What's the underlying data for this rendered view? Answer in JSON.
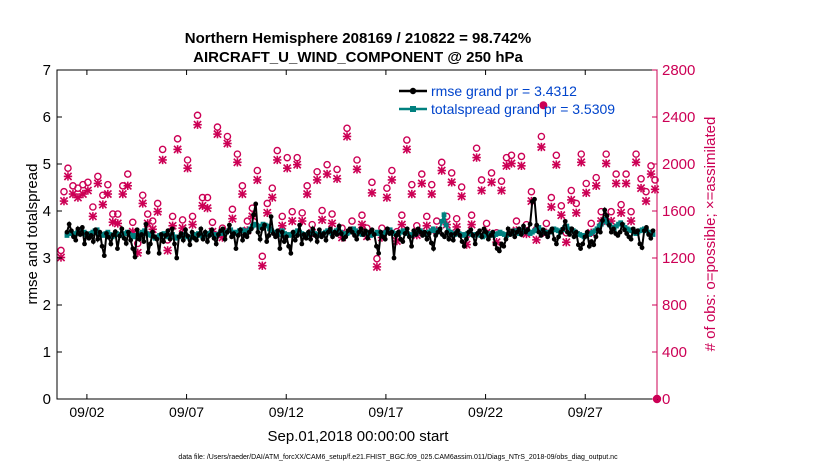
{
  "chart_data": {
    "type": "line",
    "title_line1": "Northern Hemisphere 208169 / 210822 = 98.742%",
    "title_line2": "AIRCRAFT_U_WIND_COMPONENT @ 250 hPa",
    "xlabel": "Sep.01,2018 00:00:00 start",
    "ylabel_left": "rmse and totalspread",
    "ylabel_right": "# of obs: o=possible; ×=assimilated",
    "footer": "data file: /Users/raeder/DAI/ATM_forcXX/CAM6_setup/f.e21.FHIST_BGC.f09_025.CAM6assim.011/Diags_NTrS_2018-09/obs_diag_output.nc",
    "xlim": [
      0.5,
      30.6
    ],
    "ylim_left": [
      0,
      7
    ],
    "ylim_right": [
      0,
      2800
    ],
    "x_ticks": [
      {
        "x": 2,
        "label": "09/02"
      },
      {
        "x": 7,
        "label": "09/07"
      },
      {
        "x": 12,
        "label": "09/12"
      },
      {
        "x": 17,
        "label": "09/17"
      },
      {
        "x": 22,
        "label": "09/22"
      },
      {
        "x": 27,
        "label": "09/27"
      }
    ],
    "y_ticks_left": [
      0,
      1,
      2,
      3,
      4,
      5,
      6,
      7
    ],
    "y_ticks_right": [
      0,
      400,
      800,
      1200,
      1600,
      2000,
      2400,
      2800
    ],
    "legend": [
      {
        "label": "rmse grand pr = 3.4312",
        "color": "#000000"
      },
      {
        "label": "totalspread grand pr = 3.5309",
        "color": "#00807f"
      }
    ],
    "colors": {
      "rmse": "#000000",
      "spread": "#00807f",
      "obs": "#cc0055",
      "legend_text": "#0044cc"
    },
    "series_rmse": [
      3.55,
      3.72,
      3.58,
      3.45,
      3.38,
      3.62,
      3.5,
      3.65,
      3.3,
      3.52,
      3.42,
      3.48,
      3.35,
      3.6,
      3.4,
      3.55,
      3.25,
      3.05,
      3.52,
      3.44,
      3.3,
      3.49,
      3.56,
      3.2,
      3.47,
      3.62,
      3.42,
      3.31,
      3.55,
      3.38,
      3.2,
      3.02,
      3.6,
      3.4,
      3.5,
      3.35,
      3.72,
      3.12,
      3.3,
      3.55,
      3.45,
      3.4,
      3.1,
      3.5,
      3.35,
      3.48,
      3.58,
      3.4,
      3.62,
      3.3,
      3.0,
      3.45,
      3.52,
      3.38,
      3.6,
      3.47,
      3.28,
      3.55,
      3.42,
      3.38,
      3.5,
      3.62,
      3.4,
      3.55,
      3.35,
      3.48,
      3.6,
      3.42,
      3.3,
      3.5,
      3.58,
      3.62,
      3.4,
      3.55,
      3.7,
      3.45,
      3.52,
      3.2,
      3.48,
      3.6,
      3.38,
      3.5,
      3.45,
      3.55,
      3.62,
      3.92,
      4.15,
      3.55,
      3.4,
      3.62,
      3.7,
      3.35,
      3.48,
      3.88,
      3.52,
      3.45,
      3.58,
      3.2,
      3.55,
      3.35,
      3.45,
      3.25,
      3.1,
      3.55,
      3.38,
      3.48,
      3.7,
      3.3,
      3.5,
      3.42,
      3.55,
      3.4,
      3.62,
      3.48,
      3.35,
      3.6,
      3.45,
      3.52,
      3.38,
      3.55,
      3.62,
      3.45,
      3.55,
      3.5,
      3.68,
      3.52,
      3.4,
      3.45,
      3.58,
      3.62,
      3.55,
      3.48,
      3.4,
      3.55,
      3.62,
      3.5,
      3.58,
      3.42,
      3.55,
      3.6,
      3.5,
      3.25,
      3.1,
      3.55,
      3.45,
      3.4,
      3.62,
      3.52,
      3.55,
      3.0,
      3.48,
      3.55,
      3.4,
      3.35,
      3.52,
      3.62,
      3.45,
      3.25,
      3.58,
      3.5,
      3.62,
      3.55,
      3.48,
      3.55,
      3.4,
      3.52,
      3.32,
      3.2,
      3.48,
      3.55,
      3.62,
      3.5,
      3.45,
      3.55,
      3.4,
      3.5,
      3.38,
      3.52,
      3.58,
      3.48,
      3.35,
      3.25,
      3.4,
      3.55,
      3.6,
      3.48,
      3.3,
      3.52,
      3.58,
      3.45,
      3.62,
      3.55,
      3.4,
      3.48,
      3.55,
      3.3,
      3.2,
      3.15,
      3.3,
      3.25,
      3.4,
      3.62,
      3.5,
      3.58,
      3.45,
      3.55,
      3.62,
      3.5,
      3.68,
      3.55,
      3.6,
      3.72,
      4.2,
      4.25,
      3.7,
      3.55,
      3.48,
      3.6,
      3.52,
      3.45,
      3.55,
      3.62,
      3.4,
      3.3,
      3.45,
      3.55,
      3.62,
      3.78,
      3.55,
      3.5,
      3.62,
      3.45,
      3.55,
      3.28,
      3.2,
      3.3,
      3.45,
      3.55,
      3.25,
      3.35,
      3.28,
      3.45,
      3.6,
      3.55,
      3.8,
      4.02,
      3.9,
      3.7,
      3.55,
      3.62,
      3.52,
      3.48,
      3.55,
      3.72,
      3.6,
      3.52,
      3.45,
      3.4,
      3.62,
      3.55,
      3.58,
      3.3,
      3.22,
      3.58,
      3.65,
      3.5,
      3.42,
      3.58
    ],
    "series_spread": [
      3.48,
      3.52,
      3.55,
      3.5,
      3.52,
      3.55,
      3.58,
      3.52,
      3.55,
      3.5,
      3.48,
      3.52,
      3.55,
      3.58,
      3.6,
      3.52,
      3.5,
      3.48,
      3.52,
      3.55,
      3.5,
      3.45,
      3.48,
      3.52,
      3.5,
      3.48,
      3.5,
      3.52,
      3.55,
      3.5,
      3.48,
      3.45,
      3.48,
      3.5,
      3.52,
      3.55,
      3.58,
      3.52,
      3.5,
      3.48,
      3.45,
      3.42,
      3.45,
      3.48,
      3.5,
      3.52,
      3.48,
      3.45,
      3.48,
      3.5,
      3.45,
      3.42,
      3.45,
      3.48,
      3.5,
      3.48,
      3.45,
      3.42,
      3.45,
      3.48,
      3.5,
      3.52,
      3.48,
      3.45,
      3.48,
      3.5,
      3.52,
      3.55,
      3.5,
      3.48,
      3.5,
      3.52,
      3.55,
      3.52,
      3.55,
      3.58,
      3.6,
      3.55,
      3.52,
      3.55,
      3.58,
      3.6,
      3.58,
      3.55,
      3.58,
      3.62,
      3.68,
      3.72,
      3.7,
      3.65,
      3.68,
      3.72,
      3.7,
      3.68,
      3.62,
      3.58,
      3.55,
      3.52,
      3.5,
      3.55,
      3.58,
      3.52,
      3.5,
      3.48,
      3.5,
      3.52,
      3.55,
      3.58,
      3.55,
      3.52,
      3.5,
      3.48,
      3.5,
      3.52,
      3.55,
      3.52,
      3.5,
      3.48,
      3.5,
      3.52,
      3.55,
      3.58,
      3.55,
      3.52,
      3.55,
      3.58,
      3.6,
      3.55,
      3.52,
      3.5,
      3.52,
      3.55,
      3.58,
      3.62,
      3.58,
      3.55,
      3.52,
      3.5,
      3.52,
      3.55,
      3.5,
      3.48,
      3.5,
      3.52,
      3.55,
      3.52,
      3.5,
      3.52,
      3.55,
      3.58,
      3.6,
      3.55,
      3.52,
      3.5,
      3.52,
      3.55,
      3.58,
      3.55,
      3.52,
      3.5,
      3.48,
      3.5,
      3.52,
      3.55,
      3.58,
      3.55,
      3.52,
      3.5,
      3.55,
      3.58,
      3.62,
      3.58,
      3.55,
      3.6,
      3.78,
      3.92,
      3.7,
      3.58,
      3.55,
      3.52,
      3.5,
      3.55,
      3.52,
      3.5,
      3.48,
      3.5,
      3.52,
      3.55,
      3.5,
      3.48,
      3.5,
      3.52,
      3.48,
      3.45,
      3.48,
      3.5,
      3.52,
      3.5,
      3.48,
      3.5,
      3.52,
      3.55,
      3.52,
      3.5,
      3.48,
      3.5,
      3.52,
      3.55,
      3.58,
      3.55,
      3.52,
      3.55,
      3.6,
      3.58,
      3.55,
      3.52,
      3.55,
      3.58,
      3.62,
      3.65,
      3.6,
      3.58,
      3.55,
      3.52,
      3.55,
      3.58,
      3.62,
      3.6,
      3.58,
      3.55,
      3.6,
      3.65,
      3.68,
      3.62,
      3.6,
      3.58,
      3.55,
      3.52,
      3.5,
      3.48,
      3.45,
      3.48,
      3.5,
      3.52,
      3.55,
      3.58,
      3.62,
      3.68,
      3.72,
      3.78,
      3.82,
      3.75,
      3.7,
      3.65,
      3.62,
      3.68,
      3.72,
      3.75,
      3.7,
      3.65,
      3.62,
      3.6,
      3.58,
      3.55,
      3.52,
      3.55,
      3.58,
      3.6,
      3.62,
      3.58,
      3.55,
      3.52,
      3.5
    ],
    "obs_points": [
      [
        0.7,
        1230,
        1230
      ],
      [
        0.85,
        1730,
        1710
      ],
      [
        1.05,
        1930,
        1920
      ],
      [
        1.3,
        1780,
        1770
      ],
      [
        1.55,
        1760,
        1740
      ],
      [
        1.8,
        1790,
        1770
      ],
      [
        2.05,
        1810,
        1800
      ],
      [
        2.3,
        1600,
        1580
      ],
      [
        2.55,
        1860,
        1860
      ],
      [
        2.8,
        1700,
        1680
      ],
      [
        3.05,
        1790,
        1770
      ],
      [
        3.3,
        1540,
        1530
      ],
      [
        3.55,
        1540,
        1520
      ],
      [
        3.8,
        1780,
        1770
      ],
      [
        4.05,
        1880,
        1840
      ],
      [
        4.3,
        1470,
        1450
      ],
      [
        4.55,
        1290,
        1270
      ],
      [
        4.8,
        1700,
        1690
      ],
      [
        5.05,
        1540,
        1520
      ],
      [
        5.3,
        1480,
        1470
      ],
      [
        5.55,
        1630,
        1620
      ],
      [
        5.8,
        2090,
        2060
      ],
      [
        6.05,
        1320,
        1290
      ],
      [
        6.3,
        1520,
        1500
      ],
      [
        6.55,
        2180,
        2150
      ],
      [
        6.8,
        1490,
        1480
      ],
      [
        7.05,
        2000,
        1990
      ],
      [
        7.3,
        1520,
        1510
      ],
      [
        7.55,
        2380,
        2360
      ],
      [
        7.8,
        1680,
        1670
      ],
      [
        8.05,
        1680,
        1650
      ],
      [
        8.3,
        1470,
        1450
      ],
      [
        8.55,
        2280,
        2280
      ],
      [
        8.8,
        1420,
        1400
      ],
      [
        9.05,
        2200,
        2200
      ],
      [
        9.3,
        1580,
        1560
      ],
      [
        9.55,
        2050,
        2040
      ],
      [
        9.8,
        1780,
        1770
      ],
      [
        10.05,
        1480,
        1460
      ],
      [
        10.3,
        1590,
        1580
      ],
      [
        10.55,
        1910,
        1890
      ],
      [
        10.8,
        1180,
        1160
      ],
      [
        11.05,
        1630,
        1610
      ],
      [
        11.3,
        1760,
        1740
      ],
      [
        11.55,
        2080,
        2060
      ],
      [
        11.8,
        1520,
        1500
      ],
      [
        12.05,
        2020,
        1990
      ],
      [
        12.3,
        1560,
        1540
      ],
      [
        12.55,
        2020,
        2020
      ],
      [
        12.8,
        1550,
        1540
      ],
      [
        13.05,
        1780,
        1770
      ],
      [
        13.3,
        1450,
        1440
      ],
      [
        13.55,
        1900,
        1890
      ],
      [
        13.8,
        1570,
        1550
      ],
      [
        14.05,
        1960,
        1940
      ],
      [
        14.3,
        1540,
        1520
      ],
      [
        14.55,
        1920,
        1900
      ],
      [
        14.8,
        1420,
        1400
      ],
      [
        15.05,
        2270,
        2260
      ],
      [
        15.3,
        1480,
        1460
      ],
      [
        15.55,
        2000,
        1980
      ],
      [
        15.8,
        1530,
        1510
      ],
      [
        16.05,
        1420,
        1410
      ],
      [
        16.3,
        1810,
        1780
      ],
      [
        16.55,
        1160,
        1150
      ],
      [
        16.8,
        1420,
        1400
      ],
      [
        17.05,
        1760,
        1740
      ],
      [
        17.3,
        1910,
        1890
      ],
      [
        17.55,
        1390,
        1370
      ],
      [
        17.8,
        1530,
        1510
      ],
      [
        18.05,
        2170,
        2150
      ],
      [
        18.3,
        1790,
        1770
      ],
      [
        18.55,
        1440,
        1420
      ],
      [
        18.8,
        1880,
        1860
      ],
      [
        19.05,
        1520,
        1500
      ],
      [
        19.3,
        1790,
        1770
      ],
      [
        19.55,
        1480,
        1460
      ],
      [
        19.8,
        1980,
        1970
      ],
      [
        20.05,
        1520,
        1510
      ],
      [
        20.3,
        1890,
        1870
      ],
      [
        20.55,
        1500,
        1490
      ],
      [
        20.8,
        1770,
        1750
      ],
      [
        21.05,
        1360,
        1340
      ],
      [
        21.3,
        1530,
        1510
      ],
      [
        21.55,
        2100,
        2080
      ],
      [
        21.8,
        1830,
        1800
      ],
      [
        22.05,
        1460,
        1440
      ],
      [
        22.3,
        1890,
        1870
      ],
      [
        22.55,
        1380,
        1360
      ],
      [
        22.8,
        1820,
        1800
      ],
      [
        23.05,
        2020,
        2010
      ],
      [
        23.3,
        2040,
        2030
      ],
      [
        23.55,
        1480,
        1460
      ],
      [
        23.8,
        2030,
        2010
      ],
      [
        24.05,
        1450,
        1430
      ],
      [
        24.3,
        1730,
        1710
      ],
      [
        24.55,
        1410,
        1380
      ],
      [
        24.8,
        2200,
        2170
      ],
      [
        25.05,
        1460,
        1440
      ],
      [
        25.3,
        1680,
        1660
      ],
      [
        25.55,
        2040,
        2020
      ],
      [
        25.8,
        1610,
        1590
      ],
      [
        26.05,
        1380,
        1360
      ],
      [
        26.3,
        1740,
        1720
      ],
      [
        26.55,
        1630,
        1610
      ],
      [
        26.8,
        2050,
        2040
      ],
      [
        27.05,
        1800,
        1780
      ],
      [
        27.3,
        1460,
        1440
      ],
      [
        27.55,
        1850,
        1840
      ],
      [
        27.8,
        1560,
        1540
      ],
      [
        28.05,
        2050,
        2030
      ],
      [
        28.3,
        1560,
        1540
      ],
      [
        28.55,
        1880,
        1860
      ],
      [
        28.8,
        1620,
        1610
      ],
      [
        29.05,
        1880,
        1860
      ],
      [
        29.3,
        1560,
        1540
      ],
      [
        29.55,
        2050,
        2040
      ],
      [
        29.8,
        1840,
        1820
      ],
      [
        30.05,
        1730,
        1710
      ],
      [
        30.3,
        1950,
        1940
      ],
      [
        30.5,
        1830,
        1810
      ]
    ],
    "obs_highlight": [
      [
        24.9,
        2500,
        2480
      ]
    ],
    "obs_zero": [
      30.6,
      0,
      0
    ]
  }
}
